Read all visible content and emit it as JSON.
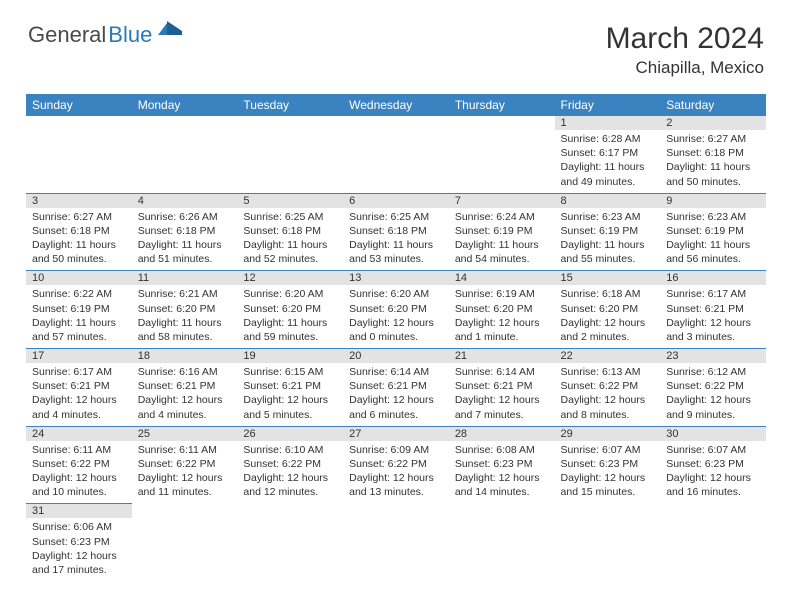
{
  "brand": {
    "text_dark": "General",
    "text_blue": "Blue"
  },
  "title": "March 2024",
  "location": "Chiapilla, Mexico",
  "colors": {
    "header_bg": "#3a83c0",
    "daynum_bg": "#e3e3e3",
    "row_divider": "#3a83c0",
    "brand_blue": "#2a7ab8",
    "text": "#333333"
  },
  "weekdays": [
    "Sunday",
    "Monday",
    "Tuesday",
    "Wednesday",
    "Thursday",
    "Friday",
    "Saturday"
  ],
  "weeks": [
    [
      null,
      null,
      null,
      null,
      null,
      {
        "n": "1",
        "sr": "6:28 AM",
        "ss": "6:17 PM",
        "dl": "11 hours and 49 minutes."
      },
      {
        "n": "2",
        "sr": "6:27 AM",
        "ss": "6:18 PM",
        "dl": "11 hours and 50 minutes."
      }
    ],
    [
      {
        "n": "3",
        "sr": "6:27 AM",
        "ss": "6:18 PM",
        "dl": "11 hours and 50 minutes."
      },
      {
        "n": "4",
        "sr": "6:26 AM",
        "ss": "6:18 PM",
        "dl": "11 hours and 51 minutes."
      },
      {
        "n": "5",
        "sr": "6:25 AM",
        "ss": "6:18 PM",
        "dl": "11 hours and 52 minutes."
      },
      {
        "n": "6",
        "sr": "6:25 AM",
        "ss": "6:18 PM",
        "dl": "11 hours and 53 minutes."
      },
      {
        "n": "7",
        "sr": "6:24 AM",
        "ss": "6:19 PM",
        "dl": "11 hours and 54 minutes."
      },
      {
        "n": "8",
        "sr": "6:23 AM",
        "ss": "6:19 PM",
        "dl": "11 hours and 55 minutes."
      },
      {
        "n": "9",
        "sr": "6:23 AM",
        "ss": "6:19 PM",
        "dl": "11 hours and 56 minutes."
      }
    ],
    [
      {
        "n": "10",
        "sr": "6:22 AM",
        "ss": "6:19 PM",
        "dl": "11 hours and 57 minutes."
      },
      {
        "n": "11",
        "sr": "6:21 AM",
        "ss": "6:20 PM",
        "dl": "11 hours and 58 minutes."
      },
      {
        "n": "12",
        "sr": "6:20 AM",
        "ss": "6:20 PM",
        "dl": "11 hours and 59 minutes."
      },
      {
        "n": "13",
        "sr": "6:20 AM",
        "ss": "6:20 PM",
        "dl": "12 hours and 0 minutes."
      },
      {
        "n": "14",
        "sr": "6:19 AM",
        "ss": "6:20 PM",
        "dl": "12 hours and 1 minute."
      },
      {
        "n": "15",
        "sr": "6:18 AM",
        "ss": "6:20 PM",
        "dl": "12 hours and 2 minutes."
      },
      {
        "n": "16",
        "sr": "6:17 AM",
        "ss": "6:21 PM",
        "dl": "12 hours and 3 minutes."
      }
    ],
    [
      {
        "n": "17",
        "sr": "6:17 AM",
        "ss": "6:21 PM",
        "dl": "12 hours and 4 minutes."
      },
      {
        "n": "18",
        "sr": "6:16 AM",
        "ss": "6:21 PM",
        "dl": "12 hours and 4 minutes."
      },
      {
        "n": "19",
        "sr": "6:15 AM",
        "ss": "6:21 PM",
        "dl": "12 hours and 5 minutes."
      },
      {
        "n": "20",
        "sr": "6:14 AM",
        "ss": "6:21 PM",
        "dl": "12 hours and 6 minutes."
      },
      {
        "n": "21",
        "sr": "6:14 AM",
        "ss": "6:21 PM",
        "dl": "12 hours and 7 minutes."
      },
      {
        "n": "22",
        "sr": "6:13 AM",
        "ss": "6:22 PM",
        "dl": "12 hours and 8 minutes."
      },
      {
        "n": "23",
        "sr": "6:12 AM",
        "ss": "6:22 PM",
        "dl": "12 hours and 9 minutes."
      }
    ],
    [
      {
        "n": "24",
        "sr": "6:11 AM",
        "ss": "6:22 PM",
        "dl": "12 hours and 10 minutes."
      },
      {
        "n": "25",
        "sr": "6:11 AM",
        "ss": "6:22 PM",
        "dl": "12 hours and 11 minutes."
      },
      {
        "n": "26",
        "sr": "6:10 AM",
        "ss": "6:22 PM",
        "dl": "12 hours and 12 minutes."
      },
      {
        "n": "27",
        "sr": "6:09 AM",
        "ss": "6:22 PM",
        "dl": "12 hours and 13 minutes."
      },
      {
        "n": "28",
        "sr": "6:08 AM",
        "ss": "6:23 PM",
        "dl": "12 hours and 14 minutes."
      },
      {
        "n": "29",
        "sr": "6:07 AM",
        "ss": "6:23 PM",
        "dl": "12 hours and 15 minutes."
      },
      {
        "n": "30",
        "sr": "6:07 AM",
        "ss": "6:23 PM",
        "dl": "12 hours and 16 minutes."
      }
    ],
    [
      {
        "n": "31",
        "sr": "6:06 AM",
        "ss": "6:23 PM",
        "dl": "12 hours and 17 minutes."
      },
      null,
      null,
      null,
      null,
      null,
      null
    ]
  ],
  "labels": {
    "sunrise": "Sunrise:",
    "sunset": "Sunset:",
    "daylight": "Daylight:"
  }
}
